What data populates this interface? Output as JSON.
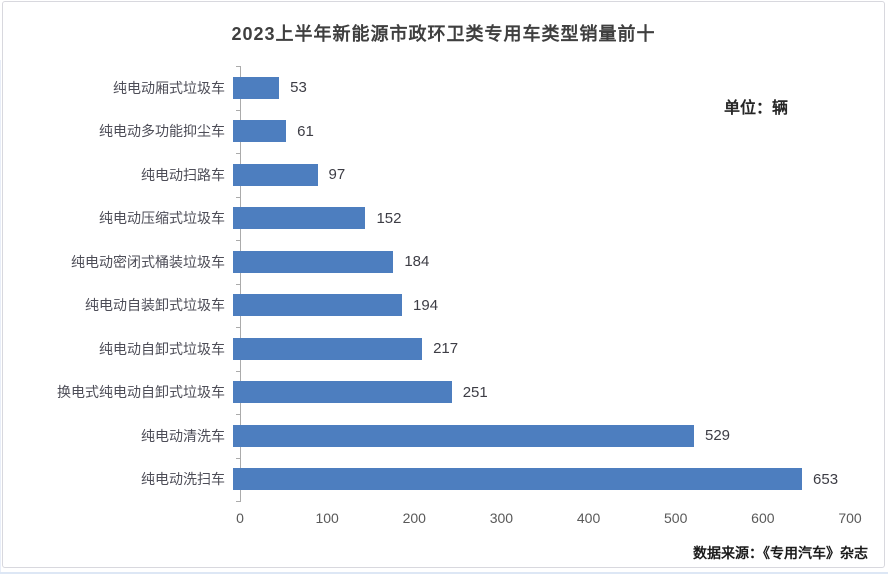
{
  "title": "2023上半年新能源市政环卫类专用车类型销量前十",
  "unit_label": "单位：辆",
  "source_label": "数据来源：《专用汽车》杂志",
  "colors": {
    "bar": "#4d7ebf",
    "axis": "#ababab",
    "title_text": "#3f3f3f",
    "category_text": "#4d4d57",
    "value_text": "#3d3d45"
  },
  "chart_data": {
    "type": "bar",
    "orientation": "horizontal",
    "title": "2023上半年新能源市政环卫类专用车类型销量前十",
    "unit": "辆",
    "categories": [
      "纯电动厢式垃圾车",
      "纯电动多功能抑尘车",
      "纯电动扫路车",
      "纯电动压缩式垃圾车",
      "纯电动密闭式桶装垃圾车",
      "纯电动自装卸式垃圾车",
      "纯电动自卸式垃圾车",
      "换电式纯电动自卸式垃圾车",
      "纯电动清洗车",
      "纯电动洗扫车"
    ],
    "values": [
      53,
      61,
      97,
      152,
      184,
      194,
      217,
      251,
      529,
      653
    ],
    "xlim": [
      0,
      700
    ],
    "xticks": [
      0,
      100,
      200,
      300,
      400,
      500,
      600,
      700
    ],
    "grid": false,
    "legend": false,
    "data_labels": true
  }
}
